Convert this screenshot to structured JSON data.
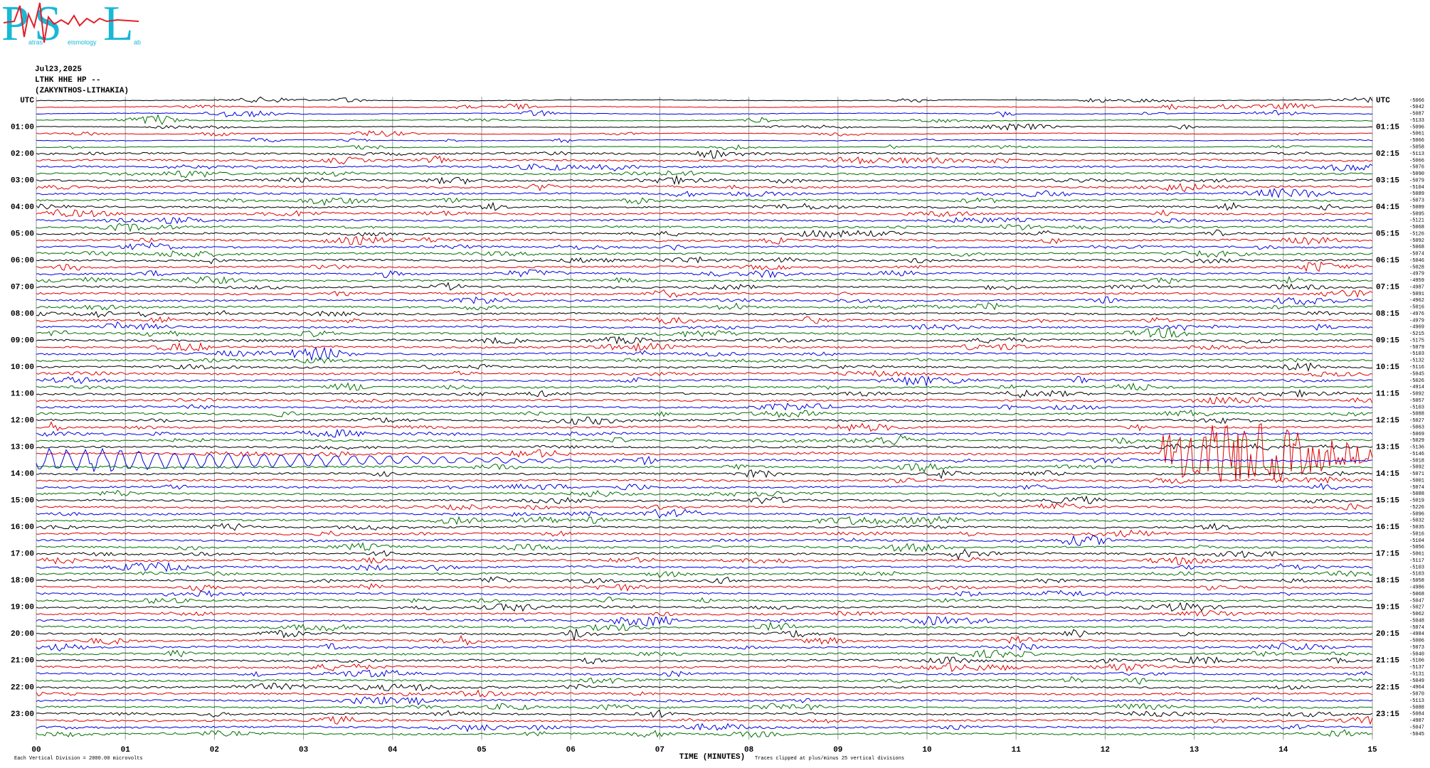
{
  "logo": {
    "letters": [
      "P",
      "S",
      "L"
    ],
    "words": [
      "atras",
      "eismology",
      "ab"
    ]
  },
  "header": {
    "date": "Jul23,2025",
    "station": "LTHK HHE HP --",
    "location": "(ZAKYNTHOS-LITHAKIA)"
  },
  "left_labels": [
    "UTC",
    "01:00",
    "02:00",
    "03:00",
    "04:00",
    "05:00",
    "06:00",
    "07:00",
    "08:00",
    "09:00",
    "10:00",
    "11:00",
    "12:00",
    "13:00",
    "14:00",
    "15:00",
    "16:00",
    "17:00",
    "18:00",
    "19:00",
    "20:00",
    "21:00",
    "22:00",
    "23:00"
  ],
  "right_labels": [
    "UTC",
    "01:15",
    "02:15",
    "03:15",
    "04:15",
    "05:15",
    "06:15",
    "07:15",
    "08:15",
    "09:15",
    "10:15",
    "11:15",
    "12:15",
    "13:15",
    "14:15",
    "15:15",
    "16:15",
    "17:15",
    "18:15",
    "19:15",
    "20:15",
    "21:15",
    "22:15",
    "23:15"
  ],
  "offsets": [
    -5066,
    -5042,
    -5087,
    -5133,
    -5096,
    -5061,
    -5066,
    -5058,
    -5113,
    -5066,
    -5076,
    -5090,
    -5079,
    -5104,
    -5089,
    -5073,
    -5089,
    -5095,
    -5121,
    -5068,
    -5126,
    -5092,
    -5068,
    -5074,
    -5046,
    -5028,
    -4979,
    -4959,
    -4987,
    -5091,
    -4962,
    -5016,
    -4976,
    -4979,
    -4969,
    -5215,
    -5175,
    -5079,
    -5103,
    -5132,
    -5116,
    -5045,
    -5026,
    -4914,
    -5092,
    -5057,
    -5103,
    -5088,
    -5027,
    -5063,
    -5069,
    -5029,
    -5136,
    -5146,
    -5018,
    -5092,
    -5071,
    -5001,
    -5074,
    -5088,
    -5019,
    -5226,
    -5096,
    -5032,
    -5035,
    -5016,
    -5104,
    -5056,
    -5061,
    -5117,
    -5103,
    -5103,
    -5058,
    -4986,
    -5068,
    -5047,
    -5027,
    -5062,
    -5048,
    -5074,
    -4984,
    -5006,
    -5073,
    -5040,
    -5106,
    -5137,
    -5131,
    -5049,
    -4964,
    -5070,
    -5113,
    -5088,
    -5084,
    -4987,
    -5047,
    -5045
  ],
  "x_axis": {
    "ticks": [
      "00",
      "01",
      "02",
      "03",
      "04",
      "05",
      "06",
      "07",
      "08",
      "09",
      "10",
      "11",
      "12",
      "13",
      "14",
      "15"
    ],
    "label": "TIME (MINUTES)"
  },
  "footer": {
    "scale_note": "Each Vertical Division = 2000.00 microvolts",
    "clip_note": "Traces clipped at plus/minus 25 vertical divisions"
  }
}
